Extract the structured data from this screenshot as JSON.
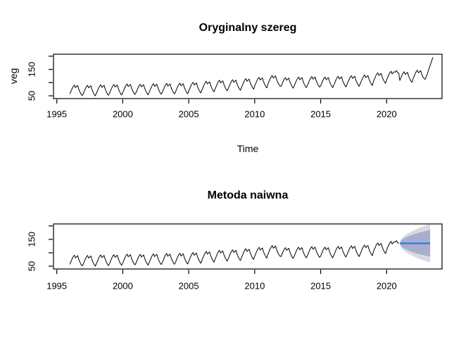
{
  "figure": {
    "background": "#ffffff",
    "text_color": "#000000"
  },
  "chart_data": [
    {
      "type": "line",
      "title": "Oryginalny szereg",
      "xlabel": "Time",
      "ylabel": "veg",
      "x_start": 1996.0,
      "frequency": 12,
      "xlim": [
        1994.75,
        2024.2
      ],
      "ylim": [
        39.5,
        207.5
      ],
      "xticks": [
        1995,
        2000,
        2005,
        2010,
        2015,
        2020
      ],
      "yticks": [
        50,
        100,
        150,
        200
      ],
      "ytick_labels_shown": [
        50,
        150
      ],
      "grid": false,
      "line_color": "#000000",
      "values": [
        58,
        68,
        78,
        86,
        91,
        81,
        85,
        89,
        75,
        65,
        57,
        51,
        57,
        67,
        77,
        85,
        90,
        80,
        84,
        88,
        74,
        64,
        56,
        50,
        59,
        69,
        79,
        87,
        92,
        82,
        86,
        90,
        76,
        66,
        58,
        52,
        60,
        70,
        80,
        88,
        93,
        83,
        87,
        91,
        77,
        67,
        59,
        53,
        62,
        72,
        82,
        90,
        95,
        85,
        89,
        93,
        79,
        69,
        61,
        55,
        61,
        71,
        81,
        89,
        94,
        84,
        88,
        92,
        78,
        68,
        60,
        54,
        63,
        73,
        83,
        91,
        96,
        86,
        90,
        94,
        80,
        70,
        62,
        56,
        64,
        74,
        84,
        92,
        97,
        87,
        91,
        95,
        81,
        71,
        63,
        57,
        65,
        75,
        85,
        93,
        98,
        88,
        92,
        96,
        82,
        72,
        64,
        58,
        68,
        78,
        88,
        96,
        101,
        91,
        95,
        99,
        85,
        75,
        67,
        61,
        72,
        82,
        92,
        100,
        105,
        95,
        99,
        103,
        89,
        79,
        71,
        65,
        76,
        86,
        96,
        104,
        109,
        99,
        103,
        107,
        93,
        83,
        75,
        69,
        78,
        88,
        98,
        106,
        111,
        101,
        105,
        109,
        95,
        85,
        77,
        71,
        82,
        92,
        102,
        110,
        115,
        105,
        109,
        113,
        99,
        89,
        81,
        75,
        87,
        97,
        107,
        115,
        120,
        110,
        114,
        118,
        104,
        94,
        86,
        80,
        94,
        104,
        114,
        122,
        127,
        117,
        121,
        125,
        111,
        101,
        93,
        87,
        86,
        96,
        106,
        114,
        119,
        109,
        113,
        117,
        103,
        93,
        85,
        79,
        88,
        98,
        108,
        116,
        121,
        111,
        115,
        119,
        105,
        95,
        87,
        81,
        90,
        100,
        110,
        118,
        123,
        113,
        117,
        121,
        107,
        97,
        89,
        83,
        88,
        98,
        108,
        116,
        121,
        111,
        115,
        119,
        105,
        95,
        87,
        81,
        91,
        101,
        111,
        119,
        124,
        114,
        118,
        122,
        108,
        98,
        90,
        84,
        93,
        103,
        113,
        121,
        126,
        116,
        120,
        124,
        110,
        100,
        92,
        86,
        96,
        106,
        116,
        124,
        129,
        119,
        123,
        127,
        113,
        103,
        95,
        89,
        104,
        114,
        124,
        132,
        137,
        127,
        131,
        135,
        121,
        111,
        103,
        97,
        110,
        120,
        130,
        138,
        143,
        133,
        137,
        141,
        140,
        145,
        138,
        135,
        108,
        118,
        128,
        136,
        141,
        131,
        135,
        139,
        125,
        115,
        107,
        101,
        114,
        124,
        134,
        142,
        147,
        137,
        141,
        145,
        131,
        121,
        116,
        112,
        122,
        133,
        146,
        158,
        170,
        183,
        195
      ]
    },
    {
      "type": "line+forecast",
      "title": "Metoda naiwna",
      "xlabel": "",
      "ylabel": "",
      "x_start": 1996.0,
      "frequency": 12,
      "xlim": [
        1994.75,
        2024.2
      ],
      "ylim": [
        39.5,
        207.5
      ],
      "xticks": [
        1995,
        2000,
        2005,
        2010,
        2015,
        2020
      ],
      "yticks": [
        50,
        100,
        150,
        200
      ],
      "ytick_labels_shown": [
        50,
        150
      ],
      "grid": false,
      "line_color": "#000000",
      "values_from": 0,
      "train_count": 300,
      "forecast": {
        "method_label": "naive",
        "start": 2021.0,
        "end": 2023.3,
        "mean": 135,
        "mean_color": "#2F86D8",
        "intervals": [
          {
            "level": 95,
            "halfwidth_end": 72,
            "color": "#D8DAE2"
          },
          {
            "level": 80,
            "halfwidth_end": 50,
            "color": "#A9AECD"
          }
        ]
      }
    }
  ]
}
